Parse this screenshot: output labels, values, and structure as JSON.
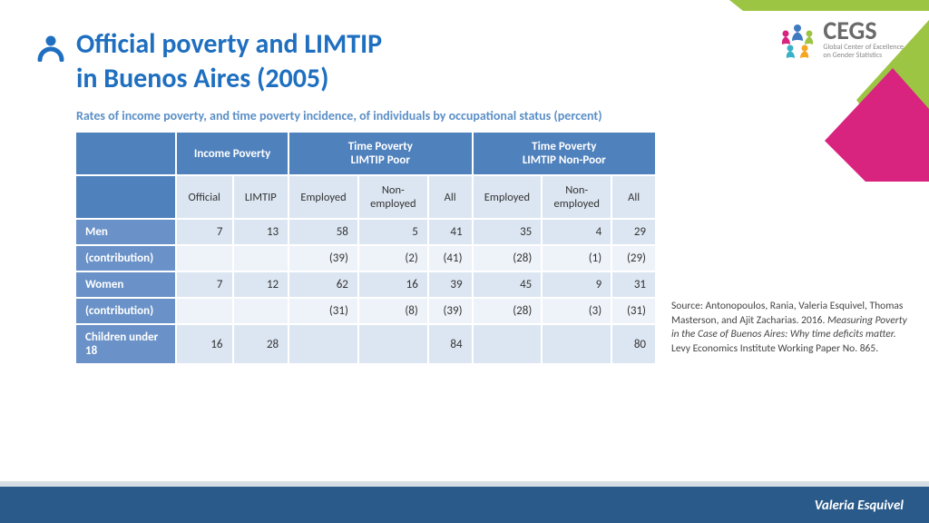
{
  "title_line1": "Official poverty and LIMTIP",
  "title_line2": "in Buenos Aires (2005)",
  "subtitle": "Rates of income poverty, and time poverty incidence, of individuals by occupational status (percent)",
  "logo": {
    "main": "CEGS",
    "sub1": "Global Center of Excellence",
    "sub2": "on Gender Statistics"
  },
  "table": {
    "group_headers": [
      "Income Poverty",
      "Time Poverty\nLIMTIP Poor",
      "Time Poverty\nLIMTIP Non-Poor"
    ],
    "sub_headers": [
      "Official",
      "LIMTIP",
      "Employed",
      "Non-employed",
      "All",
      "Employed",
      "Non-employed",
      "All"
    ],
    "rows": [
      {
        "label": "Men",
        "cells": [
          "7",
          "13",
          "58",
          "5",
          "41",
          "35",
          "4",
          "29"
        ],
        "alt": false
      },
      {
        "label": "(contribution)",
        "cells": [
          "",
          "",
          "(39)",
          "(2)",
          "(41)",
          "(28)",
          "(1)",
          "(29)"
        ],
        "alt": true
      },
      {
        "label": "Women",
        "cells": [
          "7",
          "12",
          "62",
          "16",
          "39",
          "45",
          "9",
          "31"
        ],
        "alt": false
      },
      {
        "label": "(contribution)",
        "cells": [
          "",
          "",
          "(31)",
          "(8)",
          "(39)",
          "(28)",
          "(3)",
          "(31)"
        ],
        "alt": true
      },
      {
        "label": "Children under 18",
        "cells": [
          "16",
          "28",
          "",
          "",
          "84",
          "",
          "",
          "80"
        ],
        "alt": false
      }
    ]
  },
  "source": {
    "prefix": "Source: Antonopoulos, Rania, Valeria Esquivel, Thomas Masterson, and Ajit Zacharias. 2016. ",
    "italic": "Measuring Poverty in the Case of Buenos Aires: Why time deficits matter.",
    "suffix": " Levy Economics Institute Working Paper No. 865."
  },
  "author": "Valeria Esquivel",
  "colors": {
    "title": "#1f6fc0",
    "header_bg": "#4f81bd",
    "rowlabel_bg": "#6a92c8",
    "cell_a": "#dce6f2",
    "cell_b": "#eef3f9",
    "footer": "#2a5a8a",
    "green": "#9dc544",
    "magenta": "#d8237f"
  }
}
